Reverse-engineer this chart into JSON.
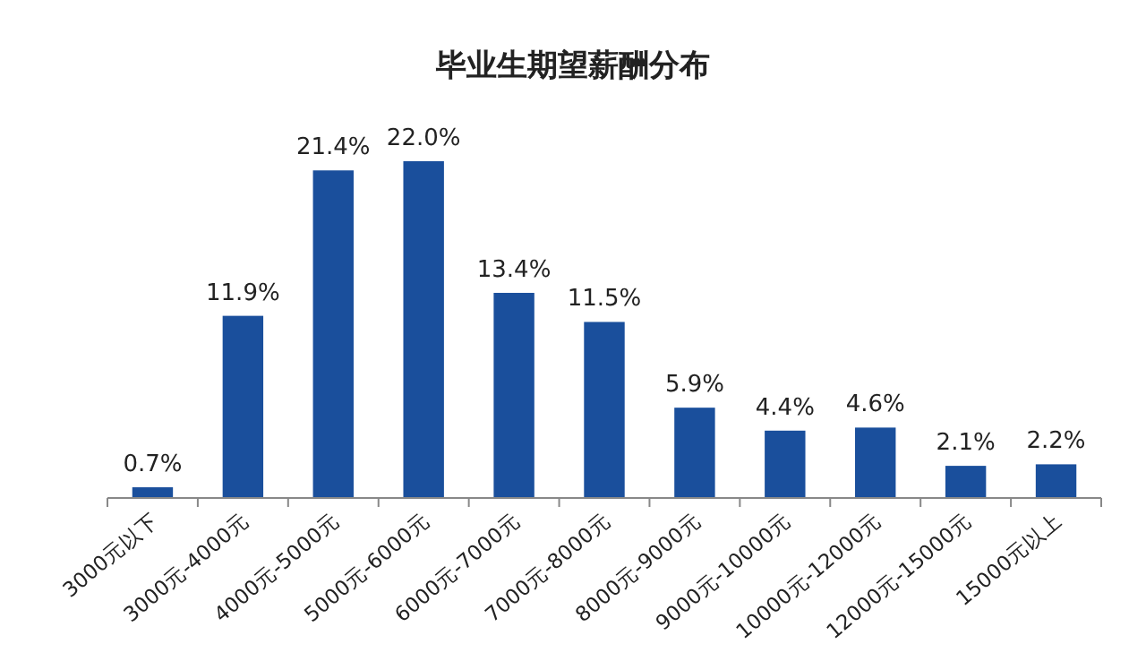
{
  "chart_data": {
    "type": "bar",
    "title": "毕业生期望薪酬分布",
    "categories": [
      "3000元以下",
      "3000元-4000元",
      "4000元-5000元",
      "5000元-6000元",
      "6000元-7000元",
      "7000元-8000元",
      "8000元-9000元",
      "9000元-10000元",
      "10000元-12000元",
      "12000元-15000元",
      "15000元以上"
    ],
    "values": [
      0.7,
      11.9,
      21.4,
      22.0,
      13.4,
      11.5,
      5.9,
      4.4,
      4.6,
      2.1,
      2.2
    ],
    "value_labels": [
      "0.7%",
      "11.9%",
      "21.4%",
      "22.0%",
      "13.4%",
      "11.5%",
      "5.9%",
      "4.4%",
      "4.6%",
      "2.1%",
      "2.2%"
    ],
    "color": "#1a4f9c"
  }
}
